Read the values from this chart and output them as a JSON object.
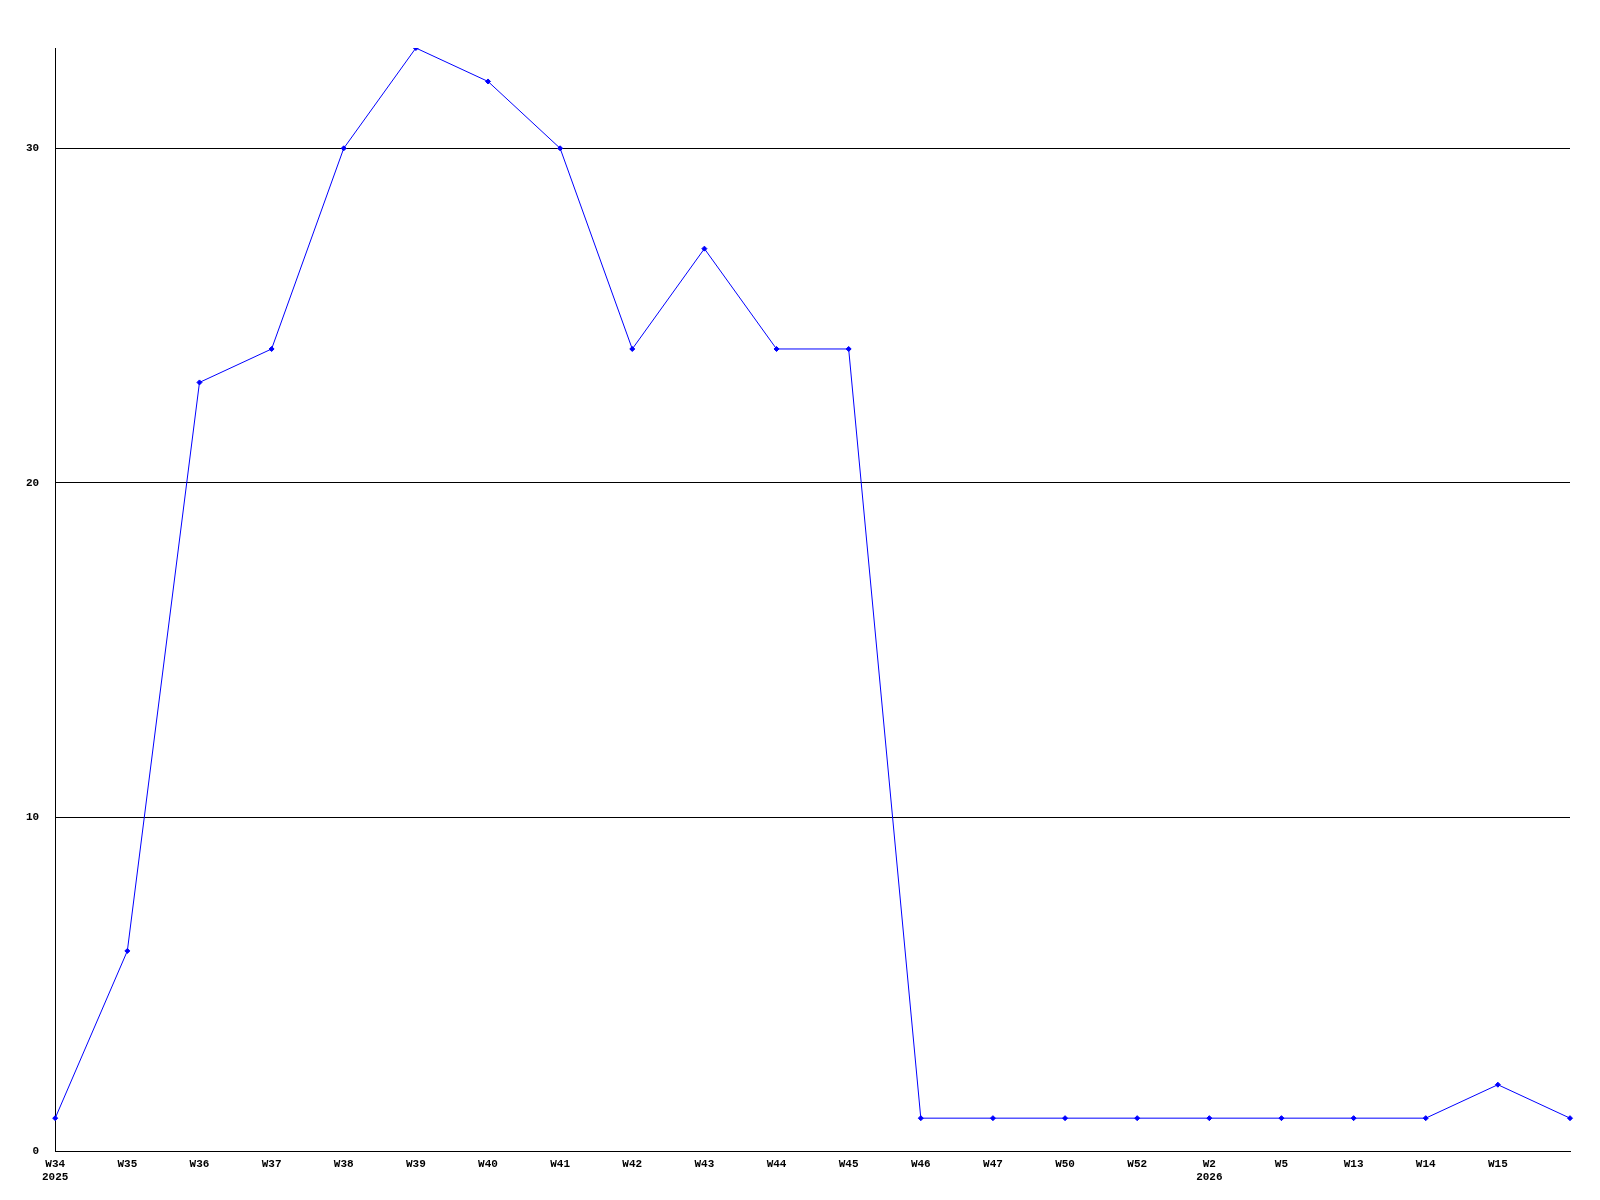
{
  "chart_data": {
    "type": "line",
    "categories": [
      "W34\n2025",
      "W35",
      "W36",
      "W37",
      "W38",
      "W39",
      "W40",
      "W41",
      "W42",
      "W43",
      "W44",
      "W45",
      "W46",
      "W47",
      "W50",
      "W52",
      "W2\n2026",
      "W5",
      "W13",
      "W14",
      "W15",
      null
    ],
    "series": [
      {
        "color": "#0000ff",
        "values": [
          1,
          6,
          23,
          24,
          30,
          33,
          32,
          30,
          24,
          27,
          24,
          24,
          1,
          1,
          1,
          1,
          1,
          1,
          1,
          1,
          2,
          1
        ]
      }
    ],
    "ylim": [
      0,
      33
    ],
    "yticks": [
      0,
      10,
      20,
      30
    ],
    "grid": "y",
    "marker": "diamond",
    "line_style": "solid",
    "legend": false
  }
}
